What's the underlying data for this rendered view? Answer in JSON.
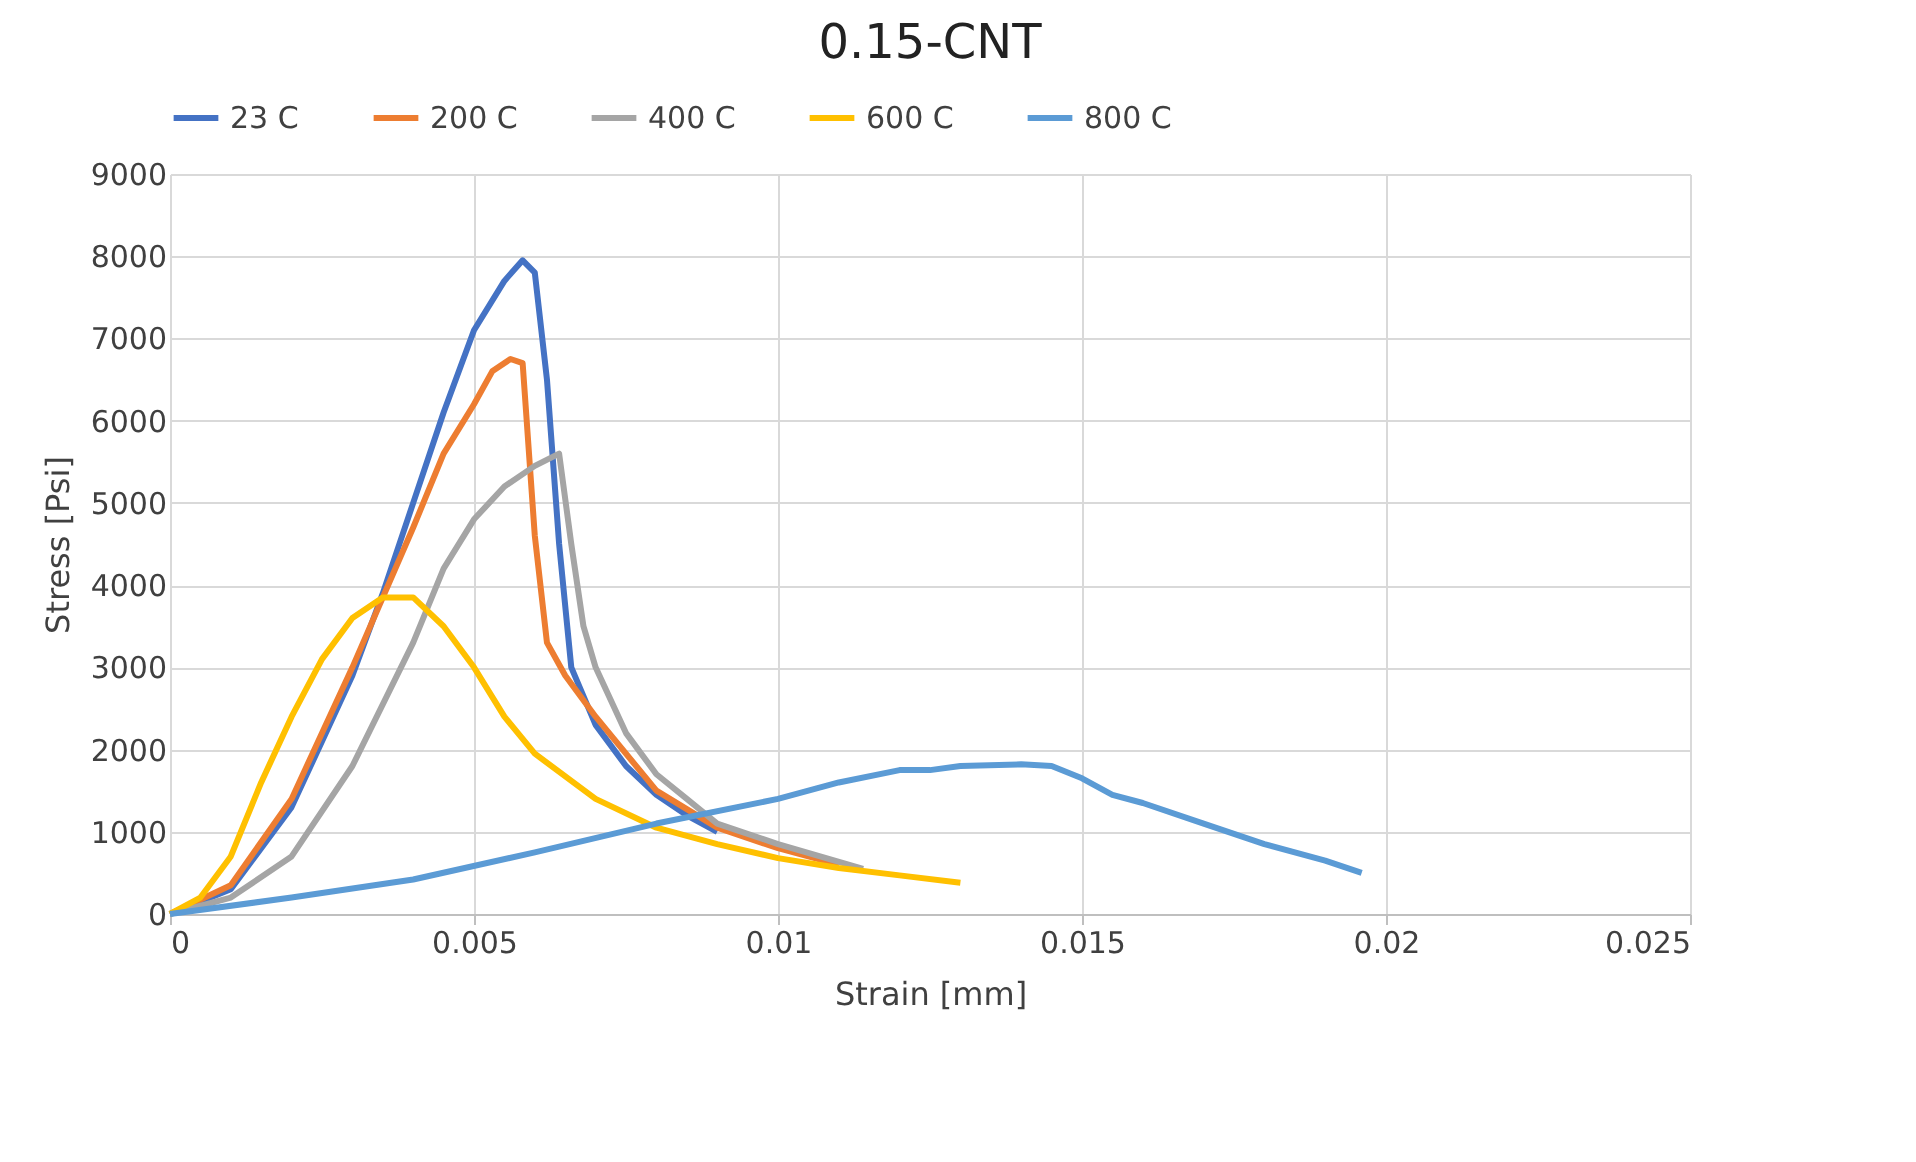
{
  "chart_data": {
    "type": "line",
    "title": "0.15-CNT",
    "xlabel": "Strain [mm]",
    "ylabel": "Stress [Psi]",
    "xlim": [
      0,
      0.025
    ],
    "xticks": [
      0,
      0.005,
      0.01,
      0.015,
      0.02,
      0.025
    ],
    "ylim": [
      0,
      9000
    ],
    "yticks": [
      0,
      1000,
      2000,
      3000,
      4000,
      5000,
      6000,
      7000,
      8000,
      9000
    ],
    "grid": true,
    "legend": "top",
    "marker": "none",
    "line_style": "solid",
    "series": [
      {
        "name": "23 C",
        "color": "#4472c4",
        "x": [
          0,
          0.001,
          0.002,
          0.003,
          0.0035,
          0.004,
          0.0045,
          0.005,
          0.0055,
          0.0058,
          0.006,
          0.0062,
          0.0064,
          0.0066,
          0.007,
          0.0075,
          0.008,
          0.0085,
          0.009
        ],
        "values": [
          0,
          300,
          1300,
          2900,
          3900,
          5000,
          6100,
          7100,
          7700,
          7950,
          7800,
          6500,
          4500,
          3000,
          2300,
          1800,
          1450,
          1200,
          1000
        ]
      },
      {
        "name": "200 C",
        "color": "#ed7d31",
        "x": [
          0,
          0.001,
          0.002,
          0.003,
          0.004,
          0.0045,
          0.005,
          0.0053,
          0.0056,
          0.0058,
          0.006,
          0.0062,
          0.0065,
          0.007,
          0.008,
          0.009,
          0.01,
          0.011
        ],
        "values": [
          0,
          350,
          1400,
          3000,
          4700,
          5600,
          6200,
          6600,
          6750,
          6700,
          4600,
          3300,
          2900,
          2400,
          1500,
          1050,
          800,
          600
        ]
      },
      {
        "name": "400 C",
        "color": "#a5a5a5",
        "x": [
          0,
          0.001,
          0.002,
          0.003,
          0.004,
          0.0045,
          0.005,
          0.0055,
          0.006,
          0.0064,
          0.0066,
          0.0068,
          0.007,
          0.0075,
          0.008,
          0.0085,
          0.009,
          0.01,
          0.0114
        ],
        "values": [
          0,
          200,
          700,
          1800,
          3300,
          4200,
          4800,
          5200,
          5450,
          5600,
          4500,
          3500,
          3000,
          2200,
          1700,
          1400,
          1100,
          850,
          550
        ]
      },
      {
        "name": "600 C",
        "color": "#ffc000",
        "x": [
          0,
          0.0005,
          0.001,
          0.0015,
          0.002,
          0.0025,
          0.003,
          0.0035,
          0.004,
          0.0045,
          0.005,
          0.0055,
          0.006,
          0.007,
          0.008,
          0.009,
          0.01,
          0.011,
          0.012,
          0.013
        ],
        "values": [
          0,
          200,
          700,
          1600,
          2400,
          3100,
          3600,
          3850,
          3850,
          3500,
          3000,
          2400,
          1950,
          1400,
          1050,
          850,
          680,
          560,
          470,
          380
        ]
      },
      {
        "name": "800 C",
        "color": "#5b9bd5",
        "x": [
          0,
          0.002,
          0.004,
          0.006,
          0.008,
          0.01,
          0.011,
          0.012,
          0.0125,
          0.013,
          0.014,
          0.0145,
          0.015,
          0.0155,
          0.016,
          0.017,
          0.018,
          0.019,
          0.0196
        ],
        "values": [
          0,
          200,
          420,
          750,
          1100,
          1400,
          1600,
          1750,
          1750,
          1800,
          1820,
          1800,
          1650,
          1450,
          1350,
          1100,
          850,
          650,
          500
        ]
      }
    ]
  }
}
